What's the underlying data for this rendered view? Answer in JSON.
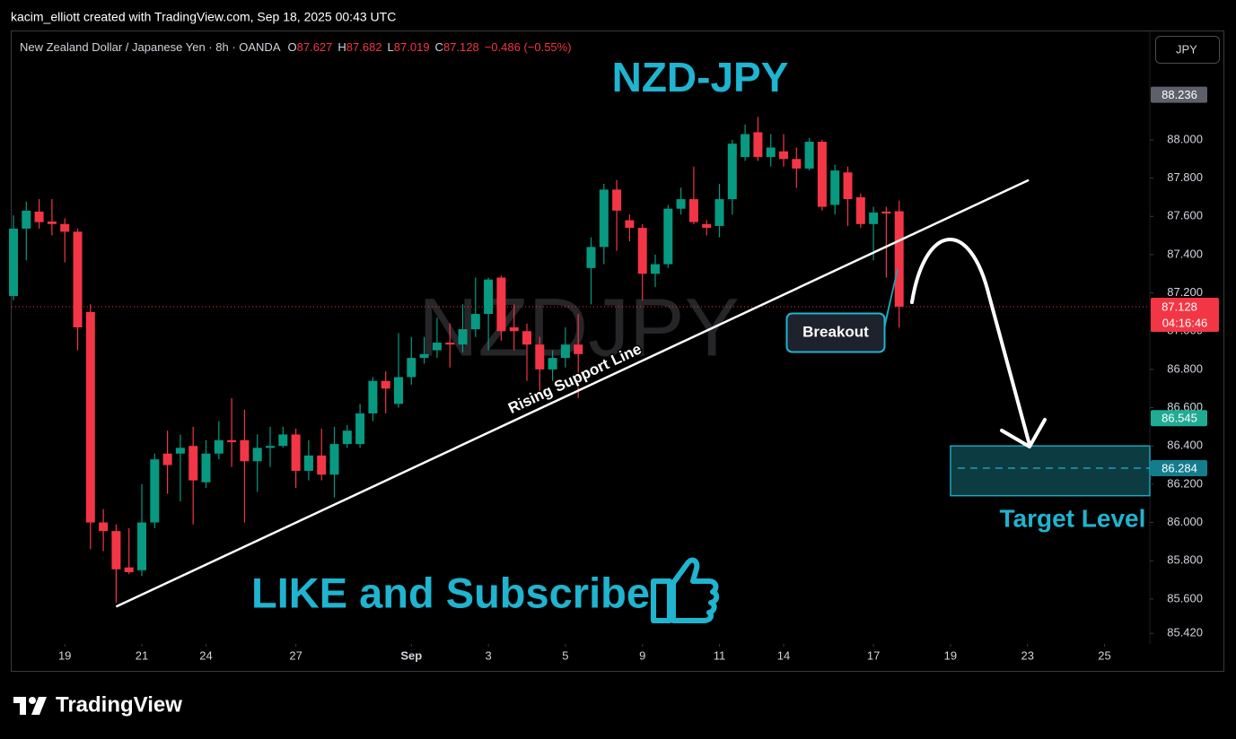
{
  "header": {
    "credit": "kacim_elliott created with TradingView.com, Sep 18, 2025 00:43 UTC",
    "brand": "TradingView"
  },
  "chart_data": {
    "type": "candlestick",
    "symbol": "New Zealand Dollar / Japanese Yen · 8h · OANDA",
    "ohlc_header": [
      {
        "key": "O",
        "value": "87.627"
      },
      {
        "key": "H",
        "value": "87.682"
      },
      {
        "key": "L",
        "value": "87.019"
      },
      {
        "key": "C",
        "value": "87.128"
      }
    ],
    "change": "−0.486 (−0.55%)",
    "currency": "JPY",
    "title": "NZD-JPY",
    "watermark": "NZDJPY",
    "up_color": "#089981",
    "down_color": "#f23645",
    "x": [
      0,
      1,
      2,
      3,
      4,
      5,
      6,
      7,
      8,
      9,
      10,
      11,
      12,
      13,
      14,
      15,
      16,
      17,
      18,
      19,
      20,
      21,
      22,
      23,
      24,
      25,
      26,
      27,
      28,
      29,
      30,
      31,
      32,
      33,
      34,
      35,
      36,
      37,
      38,
      39,
      40,
      41,
      42,
      43,
      44,
      45,
      46,
      47,
      48,
      49,
      50,
      51,
      52,
      53,
      54,
      55,
      56,
      57,
      58,
      59,
      60,
      61,
      62,
      63,
      64,
      65,
      66,
      67,
      68,
      69
    ],
    "open": [
      87.184,
      87.536,
      87.625,
      87.573,
      87.56,
      87.52,
      87.1,
      86.0,
      85.955,
      85.765,
      85.75,
      86.0,
      86.36,
      86.36,
      86.4,
      86.21,
      86.36,
      86.43,
      86.43,
      86.32,
      86.39,
      86.4,
      86.46,
      86.27,
      86.35,
      86.25,
      86.41,
      86.41,
      86.57,
      86.74,
      86.62,
      86.76,
      86.86,
      86.9,
      86.94,
      86.93,
      87.01,
      87.09,
      87.28,
      87.02,
      87.0,
      86.93,
      86.8,
      86.86,
      86.93,
      87.33,
      87.44,
      87.74,
      87.58,
      87.54,
      87.3,
      87.35,
      87.64,
      87.69,
      87.56,
      87.55,
      87.69,
      87.91,
      88.04,
      87.91,
      87.94,
      87.9,
      87.85,
      87.99,
      87.66,
      87.83,
      87.7,
      87.56,
      87.625,
      87.627
    ],
    "high": [
      87.606,
      87.677,
      87.69,
      87.69,
      87.59,
      87.536,
      87.14,
      86.07,
      85.99,
      85.97,
      86.2,
      86.36,
      86.48,
      86.46,
      86.5,
      86.43,
      86.53,
      86.65,
      86.59,
      86.46,
      86.5,
      86.5,
      86.49,
      86.43,
      86.49,
      86.5,
      86.51,
      86.62,
      86.76,
      86.79,
      86.99,
      86.97,
      86.97,
      87.07,
      87.04,
      87.14,
      87.28,
      87.28,
      87.29,
      87.14,
      87.04,
      86.97,
      86.9,
      87.02,
      87.09,
      87.49,
      87.77,
      87.79,
      87.61,
      87.56,
      87.4,
      87.66,
      87.75,
      87.86,
      87.58,
      87.77,
      88.0,
      88.08,
      88.12,
      88.03,
      88.03,
      87.96,
      88.01,
      88.0,
      87.87,
      87.86,
      87.72,
      87.65,
      87.65,
      87.682
    ],
    "low": [
      87.161,
      87.37,
      87.536,
      87.5,
      87.36,
      86.9,
      85.86,
      85.85,
      85.58,
      85.73,
      85.72,
      85.97,
      86.15,
      86.11,
      85.99,
      86.18,
      86.33,
      86.29,
      86.0,
      86.16,
      86.29,
      86.39,
      86.18,
      86.22,
      86.22,
      86.13,
      86.39,
      86.39,
      86.53,
      86.57,
      86.6,
      86.72,
      86.83,
      86.86,
      86.81,
      86.89,
      86.97,
      86.9,
      86.95,
      86.9,
      86.74,
      86.67,
      86.74,
      86.81,
      86.65,
      87.14,
      87.35,
      87.42,
      87.47,
      87.16,
      87.23,
      87.33,
      87.61,
      87.56,
      87.5,
      87.49,
      87.61,
      87.89,
      87.89,
      87.86,
      87.86,
      87.75,
      87.84,
      87.63,
      87.61,
      87.55,
      87.54,
      87.37,
      87.28,
      87.019
    ],
    "close": [
      87.536,
      87.63,
      87.57,
      87.56,
      87.52,
      87.02,
      86.0,
      85.955,
      85.755,
      85.74,
      86.0,
      86.33,
      86.3,
      86.39,
      86.22,
      86.36,
      86.43,
      86.42,
      86.32,
      86.39,
      86.4,
      86.46,
      86.27,
      86.35,
      86.25,
      86.41,
      86.48,
      86.57,
      86.74,
      86.7,
      86.76,
      86.86,
      86.88,
      86.94,
      86.93,
      87.01,
      87.09,
      87.27,
      87.0,
      87.0,
      86.93,
      86.8,
      86.86,
      86.93,
      86.88,
      87.44,
      87.74,
      87.63,
      87.54,
      87.3,
      87.35,
      87.64,
      87.69,
      87.57,
      87.54,
      87.69,
      87.98,
      88.03,
      87.91,
      87.96,
      87.9,
      87.85,
      87.99,
      87.65,
      87.84,
      87.69,
      87.56,
      87.62,
      87.615,
      87.128
    ],
    "xlim": [
      -0.14,
      88.53
    ],
    "xticks": [
      {
        "value": 4,
        "label": "19"
      },
      {
        "value": 10,
        "label": "21"
      },
      {
        "value": 15,
        "label": "24"
      },
      {
        "value": 22,
        "label": "27"
      },
      {
        "value": 31,
        "label": "Sep"
      },
      {
        "value": 37,
        "label": "3"
      },
      {
        "value": 43,
        "label": "5"
      },
      {
        "value": 49,
        "label": "9"
      },
      {
        "value": 55,
        "label": "11"
      },
      {
        "value": 60,
        "label": "14"
      },
      {
        "value": 67,
        "label": "17"
      },
      {
        "value": 73,
        "label": "19"
      },
      {
        "value": 79,
        "label": "23"
      },
      {
        "value": 85,
        "label": "25"
      }
    ],
    "ylim": [
      85.365,
      88.567
    ],
    "yticks": [
      {
        "value": 85.42,
        "label": "85.420"
      },
      {
        "value": 85.6,
        "label": "85.600"
      },
      {
        "value": 85.8,
        "label": "85.800"
      },
      {
        "value": 86,
        "label": "86.000"
      },
      {
        "value": 86.2,
        "label": "86.200"
      },
      {
        "value": 86.4,
        "label": "86.400"
      },
      {
        "value": 86.6,
        "label": "86.600"
      },
      {
        "value": 86.8,
        "label": "86.800"
      },
      {
        "value": 87,
        "label": "87.000"
      },
      {
        "value": 87.2,
        "label": "87.200"
      },
      {
        "value": 87.4,
        "label": "87.400"
      },
      {
        "value": 87.6,
        "label": "87.600"
      },
      {
        "value": 87.8,
        "label": "87.800"
      },
      {
        "value": 88,
        "label": "88.000"
      }
    ],
    "grid": false,
    "last_price": {
      "value": 87.128,
      "countdown": "04:16:46",
      "color": "#f23645"
    },
    "price_markers": [
      {
        "value": 88.236,
        "color": "#5d606b"
      },
      {
        "value": 86.545,
        "color": "#22ab94"
      },
      {
        "value": 86.284,
        "color": "#137d8e"
      }
    ],
    "trendline": {
      "x": [
        8,
        79.1
      ],
      "y": [
        85.56,
        87.79
      ],
      "label": "Rising Support Line",
      "color": "#ffffff"
    },
    "target_zone": {
      "low": 86.14,
      "high": 86.4,
      "x_start": 73,
      "label": "Target Level"
    },
    "annotations": {
      "breakout": "Breakout",
      "cta": "LIKE and Subscribe"
    }
  }
}
